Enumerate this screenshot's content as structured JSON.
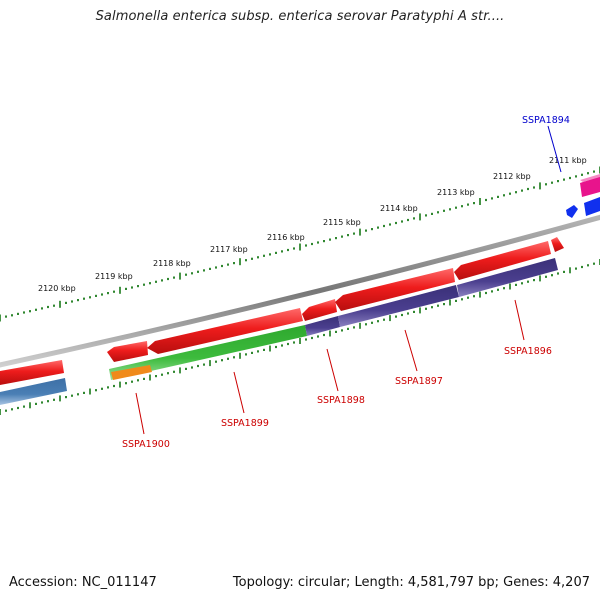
{
  "title": "Salmonella enterica subsp. enterica serovar Paratyphi A str....",
  "footer": {
    "accession": "Accession: NC_011147",
    "stats": "Topology: circular; Length: 4,581,797 bp; Genes: 4,207"
  },
  "axis_labels": [
    "2111 kbp",
    "2112 kbp",
    "2113 kbp",
    "2114 kbp",
    "2115 kbp",
    "2116 kbp",
    "2117 kbp",
    "2118 kbp",
    "2119 kbp",
    "2120 kbp"
  ],
  "gene_labels": [
    {
      "name": "SSPA1894",
      "color": "#0000cc"
    },
    {
      "name": "SSPA1896",
      "color": "#cc0000"
    },
    {
      "name": "SSPA1897",
      "color": "#cc0000"
    },
    {
      "name": "SSPA1898",
      "color": "#cc0000"
    },
    {
      "name": "SSPA1899",
      "color": "#cc0000"
    },
    {
      "name": "SSPA1900",
      "color": "#cc0000"
    }
  ],
  "colors": {
    "cds_red": "#e8141b",
    "cog_purple": "#4b3f8f",
    "cog_green": "#3dbb3d",
    "cog_orange": "#f08a1a",
    "cog_steelblue": "#4a7fb5",
    "cds_blue": "#1030ee",
    "cds_magenta": "#e8148c",
    "backbone": "#8a8a8a",
    "tick_green": "#1a7a1a"
  }
}
